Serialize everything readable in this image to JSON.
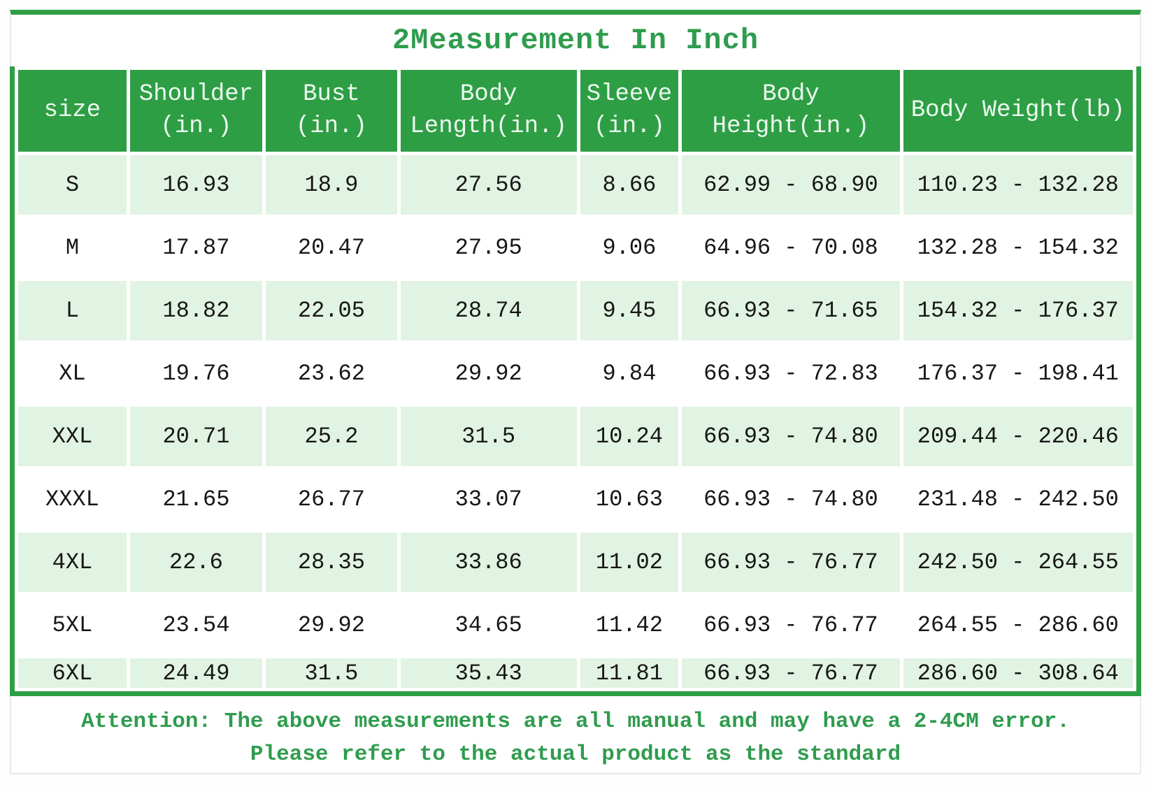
{
  "title": "2Measurement In Inch",
  "colors": {
    "green_fill": "#2e9e45",
    "light_green_row": "#e1f3e2",
    "title_text_green": "#2f9c4e",
    "header_text": "#ecf9ef",
    "body_text": "#161616",
    "frame_line": "#e9ebe9",
    "background": "#ffffff"
  },
  "table": {
    "header_lines": [
      [
        "size"
      ],
      [
        "Shoulder",
        "(in.)"
      ],
      [
        "Bust",
        "(in.)"
      ],
      [
        "Body",
        "Length(in.)"
      ],
      [
        "Sleeve",
        "(in.)"
      ],
      [
        "Body",
        "Height(in.)"
      ],
      [
        "Body Weight(lb)"
      ]
    ],
    "rows": [
      [
        "S",
        "16.93",
        "18.9",
        "27.56",
        "8.66",
        "62.99 - 68.90",
        "110.23 - 132.28"
      ],
      [
        "M",
        "17.87",
        "20.47",
        "27.95",
        "9.06",
        "64.96 - 70.08",
        "132.28 - 154.32"
      ],
      [
        "L",
        "18.82",
        "22.05",
        "28.74",
        "9.45",
        "66.93 - 71.65",
        "154.32 - 176.37"
      ],
      [
        "XL",
        "19.76",
        "23.62",
        "29.92",
        "9.84",
        "66.93 - 72.83",
        "176.37 - 198.41"
      ],
      [
        "XXL",
        "20.71",
        "25.2",
        "31.5",
        "10.24",
        "66.93 - 74.80",
        "209.44 - 220.46"
      ],
      [
        "XXXL",
        "21.65",
        "26.77",
        "33.07",
        "10.63",
        "66.93 - 74.80",
        "231.48 - 242.50"
      ],
      [
        "4XL",
        "22.6",
        "28.35",
        "33.86",
        "11.02",
        "66.93 - 76.77",
        "242.50 - 264.55"
      ],
      [
        "5XL",
        "23.54",
        "29.92",
        "34.65",
        "11.42",
        "66.93 - 76.77",
        "264.55 - 286.60"
      ],
      [
        "6XL",
        "24.49",
        "31.5",
        "35.43",
        "11.81",
        "66.93 - 76.77",
        "286.60 - 308.64"
      ]
    ]
  },
  "attention": {
    "line1": "Attention: The above measurements are all manual and may have a 2-4CM error.",
    "line2": "Please refer to the actual product as the standard"
  },
  "chart_data": {
    "type": "table",
    "title": "2Measurement In Inch",
    "columns": [
      "size",
      "Shoulder (in.)",
      "Bust (in.)",
      "Body Length(in.)",
      "Sleeve (in.)",
      "Body Height(in.)",
      "Body Weight(lb)"
    ],
    "rows": [
      [
        "S",
        16.93,
        18.9,
        27.56,
        8.66,
        "62.99 - 68.90",
        "110.23 - 132.28"
      ],
      [
        "M",
        17.87,
        20.47,
        27.95,
        9.06,
        "64.96 - 70.08",
        "132.28 - 154.32"
      ],
      [
        "L",
        18.82,
        22.05,
        28.74,
        9.45,
        "66.93 - 71.65",
        "154.32 - 176.37"
      ],
      [
        "XL",
        19.76,
        23.62,
        29.92,
        9.84,
        "66.93 - 72.83",
        "176.37 - 198.41"
      ],
      [
        "XXL",
        20.71,
        25.2,
        31.5,
        10.24,
        "66.93 - 74.80",
        "209.44 - 220.46"
      ],
      [
        "XXXL",
        21.65,
        26.77,
        33.07,
        10.63,
        "66.93 - 74.80",
        "231.48 - 242.50"
      ],
      [
        "4XL",
        22.6,
        28.35,
        33.86,
        11.02,
        "66.93 - 76.77",
        "242.50 - 264.55"
      ],
      [
        "5XL",
        23.54,
        29.92,
        34.65,
        11.42,
        "66.93 - 76.77",
        "264.55 - 286.60"
      ],
      [
        "6XL",
        24.49,
        31.5,
        35.43,
        11.81,
        "66.93 - 76.77",
        "286.60 - 308.64"
      ]
    ],
    "notes": [
      "Attention: The above measurements are all manual and may have a 2-4CM error.",
      "Please refer to the actual product as the standard"
    ],
    "layout_hints": {
      "zebra_rows": "odd data rows (S, L, XXL, 4XL, 6XL) light green, others white",
      "header_style": "solid green with white text",
      "grid": "white gaps between cells"
    }
  }
}
